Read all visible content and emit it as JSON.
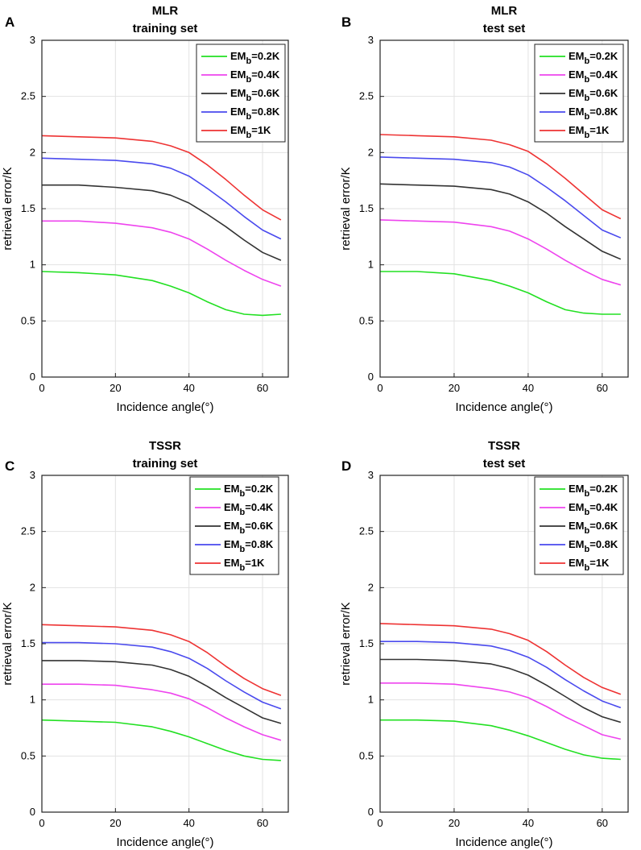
{
  "chart_data": [
    {
      "panel": "A",
      "type": "line",
      "title": [
        "MLR",
        "training set"
      ],
      "xlabel": "Incidence angle(°)",
      "ylabel": "retrieval error/K",
      "xlim": [
        0,
        67
      ],
      "ylim": [
        0,
        3
      ],
      "xticks": [
        "0",
        "20",
        "40",
        "60"
      ],
      "yticks": [
        "0",
        "0.5",
        "1",
        "1.5",
        "2",
        "2.5",
        "3"
      ],
      "grid": true,
      "legend_position": "top-right",
      "x": [
        0,
        10,
        20,
        30,
        35,
        40,
        45,
        50,
        55,
        60,
        65
      ],
      "series": [
        {
          "name_main": "EM",
          "name_sub": "b",
          "name_tail": "=0.2K",
          "color": "#22e022",
          "values": [
            0.94,
            0.93,
            0.91,
            0.86,
            0.81,
            0.75,
            0.67,
            0.6,
            0.56,
            0.55,
            0.56
          ]
        },
        {
          "name_main": "EM",
          "name_sub": "b",
          "name_tail": "=0.4K",
          "color": "#ee44ee",
          "values": [
            1.39,
            1.39,
            1.37,
            1.33,
            1.29,
            1.23,
            1.14,
            1.04,
            0.95,
            0.87,
            0.81
          ]
        },
        {
          "name_main": "EM",
          "name_sub": "b",
          "name_tail": "=0.6K",
          "color": "#333333",
          "values": [
            1.71,
            1.71,
            1.69,
            1.66,
            1.62,
            1.55,
            1.45,
            1.34,
            1.22,
            1.11,
            1.04
          ]
        },
        {
          "name_main": "EM",
          "name_sub": "b",
          "name_tail": "=0.8K",
          "color": "#4a4aee",
          "values": [
            1.95,
            1.94,
            1.93,
            1.9,
            1.86,
            1.79,
            1.68,
            1.56,
            1.43,
            1.31,
            1.23
          ]
        },
        {
          "name_main": "EM",
          "name_sub": "b",
          "name_tail": "=1K",
          "color": "#ee3333",
          "values": [
            2.15,
            2.14,
            2.13,
            2.1,
            2.06,
            2.0,
            1.89,
            1.76,
            1.62,
            1.49,
            1.4
          ]
        }
      ]
    },
    {
      "panel": "B",
      "type": "line",
      "title": [
        "MLR",
        "test set"
      ],
      "xlabel": "Incidence angle(°)",
      "ylabel": "retrieval error/K",
      "xlim": [
        0,
        67
      ],
      "ylim": [
        0,
        3
      ],
      "xticks": [
        "0",
        "20",
        "40",
        "60"
      ],
      "yticks": [
        "0",
        "0.5",
        "1",
        "1.5",
        "2",
        "2.5",
        "3"
      ],
      "grid": true,
      "legend_position": "top-right",
      "x": [
        0,
        10,
        20,
        30,
        35,
        40,
        45,
        50,
        55,
        60,
        65
      ],
      "series": [
        {
          "name_main": "EM",
          "name_sub": "b",
          "name_tail": "=0.2K",
          "color": "#22e022",
          "values": [
            0.94,
            0.94,
            0.92,
            0.86,
            0.81,
            0.75,
            0.67,
            0.6,
            0.57,
            0.56,
            0.56
          ]
        },
        {
          "name_main": "EM",
          "name_sub": "b",
          "name_tail": "=0.4K",
          "color": "#ee44ee",
          "values": [
            1.4,
            1.39,
            1.38,
            1.34,
            1.3,
            1.23,
            1.14,
            1.04,
            0.95,
            0.87,
            0.82
          ]
        },
        {
          "name_main": "EM",
          "name_sub": "b",
          "name_tail": "=0.6K",
          "color": "#333333",
          "values": [
            1.72,
            1.71,
            1.7,
            1.67,
            1.63,
            1.56,
            1.46,
            1.34,
            1.23,
            1.12,
            1.05
          ]
        },
        {
          "name_main": "EM",
          "name_sub": "b",
          "name_tail": "=0.8K",
          "color": "#4a4aee",
          "values": [
            1.96,
            1.95,
            1.94,
            1.91,
            1.87,
            1.8,
            1.69,
            1.57,
            1.44,
            1.31,
            1.24
          ]
        },
        {
          "name_main": "EM",
          "name_sub": "b",
          "name_tail": "=1K",
          "color": "#ee3333",
          "values": [
            2.16,
            2.15,
            2.14,
            2.11,
            2.07,
            2.01,
            1.9,
            1.77,
            1.63,
            1.49,
            1.41
          ]
        }
      ]
    },
    {
      "panel": "C",
      "type": "line",
      "title": [
        "TSSR",
        "training set"
      ],
      "xlabel": "Incidence angle(°)",
      "ylabel": "retrieval error/K",
      "xlim": [
        0,
        67
      ],
      "ylim": [
        0,
        3
      ],
      "xticks": [
        "0",
        "20",
        "40",
        "60"
      ],
      "yticks": [
        "0",
        "0.5",
        "1",
        "1.5",
        "2",
        "2.5",
        "3"
      ],
      "grid": true,
      "legend_position": "top-right",
      "x": [
        0,
        10,
        20,
        30,
        35,
        40,
        45,
        50,
        55,
        60,
        65
      ],
      "series": [
        {
          "name_main": "EM",
          "name_sub": "b",
          "name_tail": "=0.2K",
          "color": "#22e022",
          "values": [
            0.82,
            0.81,
            0.8,
            0.76,
            0.72,
            0.67,
            0.61,
            0.55,
            0.5,
            0.47,
            0.46
          ]
        },
        {
          "name_main": "EM",
          "name_sub": "b",
          "name_tail": "=0.4K",
          "color": "#ee44ee",
          "values": [
            1.14,
            1.14,
            1.13,
            1.09,
            1.06,
            1.01,
            0.93,
            0.84,
            0.76,
            0.69,
            0.64
          ]
        },
        {
          "name_main": "EM",
          "name_sub": "b",
          "name_tail": "=0.6K",
          "color": "#333333",
          "values": [
            1.35,
            1.35,
            1.34,
            1.31,
            1.27,
            1.21,
            1.12,
            1.02,
            0.93,
            0.84,
            0.79
          ]
        },
        {
          "name_main": "EM",
          "name_sub": "b",
          "name_tail": "=0.8K",
          "color": "#4a4aee",
          "values": [
            1.51,
            1.51,
            1.5,
            1.47,
            1.43,
            1.37,
            1.28,
            1.17,
            1.07,
            0.98,
            0.92
          ]
        },
        {
          "name_main": "EM",
          "name_sub": "b",
          "name_tail": "=1K",
          "color": "#ee3333",
          "values": [
            1.67,
            1.66,
            1.65,
            1.62,
            1.58,
            1.52,
            1.42,
            1.3,
            1.19,
            1.1,
            1.04
          ]
        }
      ]
    },
    {
      "panel": "D",
      "type": "line",
      "title": [
        "TSSR",
        "test set"
      ],
      "xlabel": "Incidence angle(°)",
      "ylabel": "retrieval error/K",
      "xlim": [
        0,
        67
      ],
      "ylim": [
        0,
        3
      ],
      "xticks": [
        "0",
        "20",
        "40",
        "60"
      ],
      "yticks": [
        "0",
        "0.5",
        "1",
        "1.5",
        "2",
        "2.5",
        "3"
      ],
      "grid": true,
      "legend_position": "top-right",
      "x": [
        0,
        10,
        20,
        30,
        35,
        40,
        45,
        50,
        55,
        60,
        65
      ],
      "series": [
        {
          "name_main": "EM",
          "name_sub": "b",
          "name_tail": "=0.2K",
          "color": "#22e022",
          "values": [
            0.82,
            0.82,
            0.81,
            0.77,
            0.73,
            0.68,
            0.62,
            0.56,
            0.51,
            0.48,
            0.47
          ]
        },
        {
          "name_main": "EM",
          "name_sub": "b",
          "name_tail": "=0.4K",
          "color": "#ee44ee",
          "values": [
            1.15,
            1.15,
            1.14,
            1.1,
            1.07,
            1.02,
            0.94,
            0.85,
            0.77,
            0.69,
            0.65
          ]
        },
        {
          "name_main": "EM",
          "name_sub": "b",
          "name_tail": "=0.6K",
          "color": "#333333",
          "values": [
            1.36,
            1.36,
            1.35,
            1.32,
            1.28,
            1.22,
            1.13,
            1.03,
            0.93,
            0.85,
            0.8
          ]
        },
        {
          "name_main": "EM",
          "name_sub": "b",
          "name_tail": "=0.8K",
          "color": "#4a4aee",
          "values": [
            1.52,
            1.52,
            1.51,
            1.48,
            1.44,
            1.38,
            1.29,
            1.18,
            1.08,
            0.99,
            0.93
          ]
        },
        {
          "name_main": "EM",
          "name_sub": "b",
          "name_tail": "=1K",
          "color": "#ee3333",
          "values": [
            1.68,
            1.67,
            1.66,
            1.63,
            1.59,
            1.53,
            1.43,
            1.31,
            1.2,
            1.11,
            1.05
          ]
        }
      ]
    }
  ]
}
